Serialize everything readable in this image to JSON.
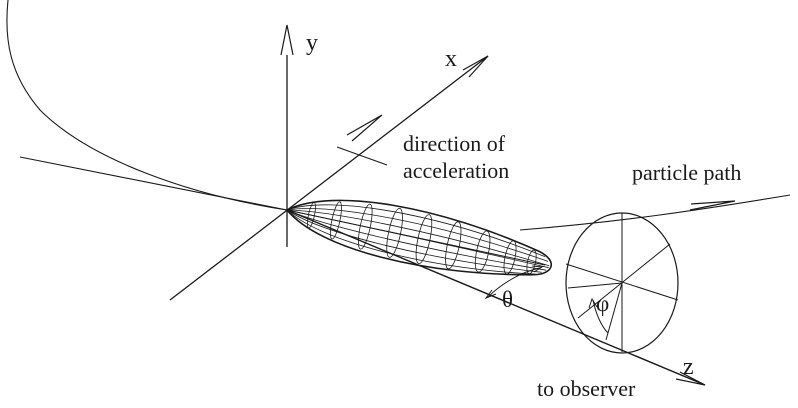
{
  "diagram": {
    "axes": {
      "x": "x",
      "y": "y",
      "z": "z"
    },
    "angles": {
      "theta": "θ",
      "phi": "φ"
    },
    "labels": {
      "acceleration_line1": "direction of",
      "acceleration_line2": "acceleration",
      "particle_path": "particle path",
      "to_observer": "to observer"
    }
  }
}
